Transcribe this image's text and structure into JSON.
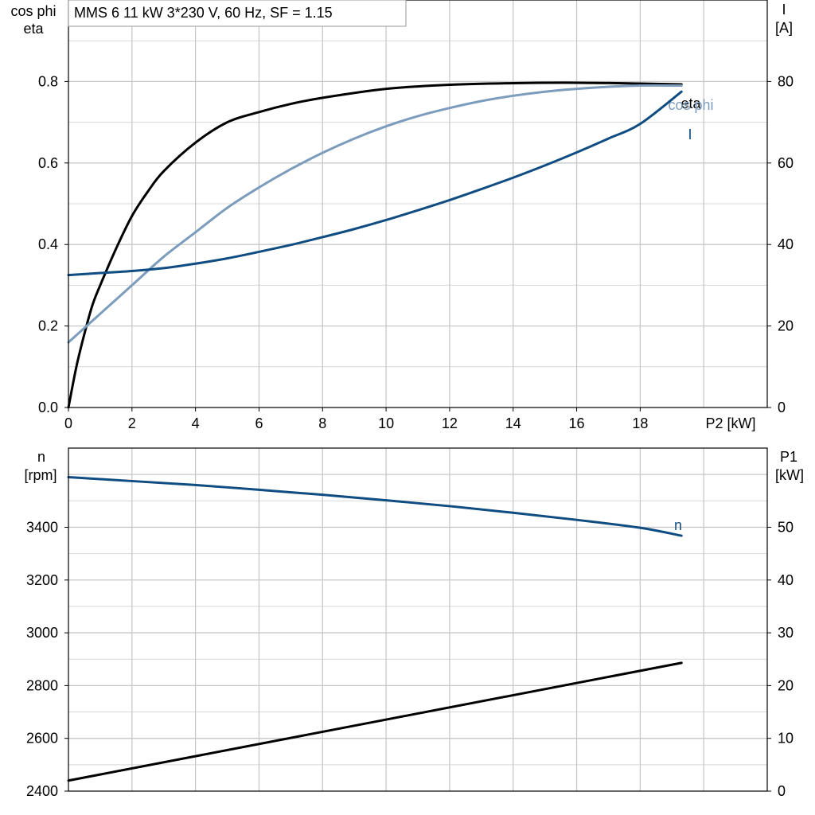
{
  "chart_title": "MMS 6   11 kW   3*230 V, 60 Hz, SF = 1.15",
  "colors": {
    "black": "#000000",
    "darkblue": "#0f4c81",
    "lightblue": "#7b9cbd"
  },
  "chart_data": [
    {
      "type": "line",
      "xlabel": "P2 [kW]",
      "ylabel_left": [
        "cos phi",
        "eta"
      ],
      "ylabel_right": [
        "I",
        "[A]"
      ],
      "x_ticks": [
        "0",
        "2",
        "4",
        "6",
        "8",
        "10",
        "12",
        "14",
        "16",
        "18"
      ],
      "y_left_ticks": [
        "0.0",
        "0.2",
        "0.4",
        "0.6",
        "0.8"
      ],
      "y_right_ticks": [
        "0",
        "20",
        "40",
        "60",
        "80"
      ],
      "xlim": [
        0,
        22
      ],
      "ylim_left": [
        0,
        1.0
      ],
      "ylim_right": [
        0,
        100
      ],
      "grid": true,
      "series": [
        {
          "name": "eta",
          "axis": "left",
          "color": "#000000",
          "x": [
            0,
            0.25,
            0.5,
            0.75,
            1,
            1.5,
            2,
            2.5,
            3,
            4,
            5,
            6,
            7,
            8,
            10,
            12,
            14,
            16,
            18,
            19.3
          ],
          "y": [
            0,
            0.1,
            0.18,
            0.25,
            0.3,
            0.39,
            0.47,
            0.53,
            0.58,
            0.65,
            0.7,
            0.725,
            0.745,
            0.76,
            0.782,
            0.792,
            0.796,
            0.797,
            0.795,
            0.793
          ]
        },
        {
          "name": "cos phi",
          "axis": "left",
          "color": "#7b9cbd",
          "x": [
            0,
            1,
            2,
            3,
            4,
            5,
            6,
            7,
            8,
            9,
            10,
            11,
            12,
            13,
            14,
            15,
            16,
            17,
            18,
            19.3
          ],
          "y": [
            0.16,
            0.23,
            0.3,
            0.37,
            0.43,
            0.49,
            0.54,
            0.585,
            0.625,
            0.66,
            0.69,
            0.715,
            0.735,
            0.752,
            0.765,
            0.775,
            0.782,
            0.787,
            0.79,
            0.79
          ]
        },
        {
          "name": "I",
          "axis": "right",
          "color": "#0f4c81",
          "x": [
            0,
            1,
            2,
            3,
            4,
            5,
            6,
            7,
            8,
            9,
            10,
            11,
            12,
            13,
            14,
            15,
            16,
            17,
            18,
            19.3
          ],
          "y": [
            32.5,
            33,
            33.5,
            34.2,
            35.3,
            36.6,
            38.2,
            39.9,
            41.8,
            43.8,
            46,
            48.4,
            50.9,
            53.6,
            56.4,
            59.4,
            62.6,
            66,
            69.6,
            77.5
          ]
        }
      ]
    },
    {
      "type": "line",
      "ylabel_left": [
        "n",
        "[rpm]"
      ],
      "ylabel_right": [
        "P1",
        "[kW]"
      ],
      "y_left_ticks": [
        "2400",
        "2600",
        "2800",
        "3000",
        "3200",
        "3400"
      ],
      "y_right_ticks": [
        "0",
        "10",
        "20",
        "30",
        "40",
        "50"
      ],
      "xlim": [
        0,
        22
      ],
      "ylim_left": [
        2400,
        3700
      ],
      "ylim_right": [
        0,
        65
      ],
      "grid": true,
      "series": [
        {
          "name": "n",
          "axis": "left",
          "color": "#0f4c81",
          "x": [
            0,
            2,
            4,
            6,
            8,
            10,
            12,
            14,
            16,
            18,
            19.3
          ],
          "y": [
            3590,
            3575,
            3560,
            3542,
            3523,
            3502,
            3480,
            3455,
            3428,
            3398,
            3368
          ]
        },
        {
          "name": "P1",
          "axis": "right",
          "color": "#000000",
          "x": [
            0,
            19.3
          ],
          "y": [
            2,
            24.3
          ]
        }
      ]
    }
  ]
}
